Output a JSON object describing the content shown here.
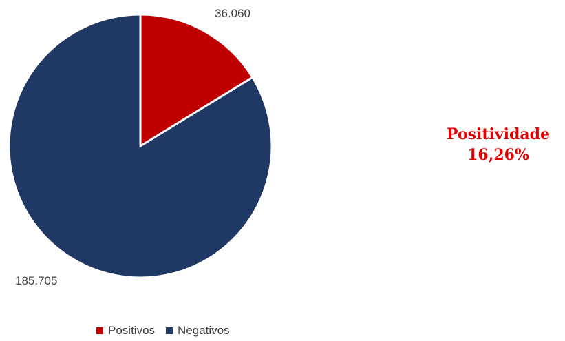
{
  "chart_data": {
    "type": "pie",
    "categories": [
      "Positivos",
      "Negativos"
    ],
    "values": [
      36060,
      185705
    ],
    "value_labels": [
      "36.060",
      "185.705"
    ],
    "colors": [
      "#c00000",
      "#203864"
    ],
    "legend_position": "bottom",
    "start_angle": "top, clockwise"
  },
  "kpi": {
    "title": "Positividade",
    "value": "16,26%"
  },
  "colors": {
    "positivos": "#c00000",
    "negativos": "#203864",
    "kpi_text": "#e00000",
    "label_text": "#404040"
  }
}
